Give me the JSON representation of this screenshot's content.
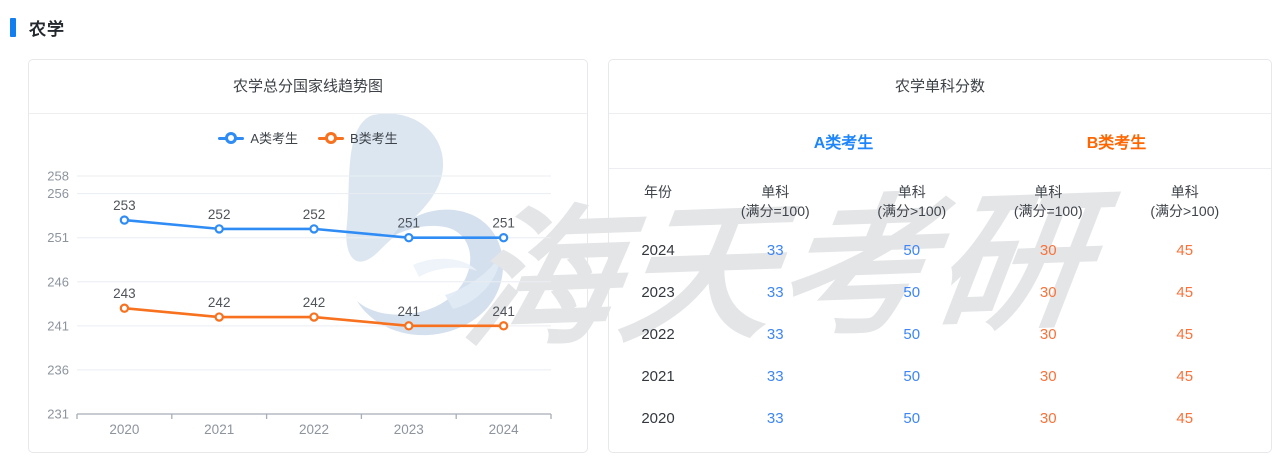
{
  "page": {
    "header_title": "农学"
  },
  "chart_panel": {
    "title": "农学总分国家线趋势图"
  },
  "chart_data": {
    "type": "line",
    "title": "农学总分国家线趋势图",
    "categories": [
      "2020",
      "2021",
      "2022",
      "2023",
      "2024"
    ],
    "series": [
      {
        "name": "A类考生",
        "color": "#2f8cf5",
        "values": [
          253,
          252,
          252,
          251,
          251
        ]
      },
      {
        "name": "B类考生",
        "color": "#f7711f",
        "values": [
          243,
          242,
          242,
          241,
          241
        ]
      }
    ],
    "ylim": [
      231,
      258
    ],
    "yticks": [
      231,
      236,
      241,
      246,
      251,
      256,
      258
    ],
    "grid": true,
    "legend_position": "top",
    "point_style": "empty-circle",
    "label_color": "#4f545b",
    "axis_color": "#a6adb8",
    "tick_label_color": "#8d949e",
    "grid_color": "#e9edf2"
  },
  "table_panel": {
    "title": "农学单科分数",
    "group_headers": [
      {
        "label": "A类考生",
        "color": "#1e86fa"
      },
      {
        "label": "B类考生",
        "color": "#ff6600"
      }
    ],
    "columns": [
      {
        "line1": "年份",
        "line2": ""
      },
      {
        "line1": "单科",
        "line2": "(满分=100)"
      },
      {
        "line1": "单科",
        "line2": "(满分>100)"
      },
      {
        "line1": "单科",
        "line2": "(满分=100)"
      },
      {
        "line1": "单科",
        "line2": "(满分>100)"
      }
    ],
    "rows": [
      {
        "year": "2024",
        "values": [
          "33",
          "50",
          "30",
          "45"
        ]
      },
      {
        "year": "2023",
        "values": [
          "33",
          "50",
          "30",
          "45"
        ]
      },
      {
        "year": "2022",
        "values": [
          "33",
          "50",
          "30",
          "45"
        ]
      },
      {
        "year": "2021",
        "values": [
          "33",
          "50",
          "30",
          "45"
        ]
      },
      {
        "year": "2020",
        "values": [
          "33",
          "50",
          "30",
          "45"
        ]
      }
    ]
  },
  "watermark": {
    "text": "海天考研"
  }
}
